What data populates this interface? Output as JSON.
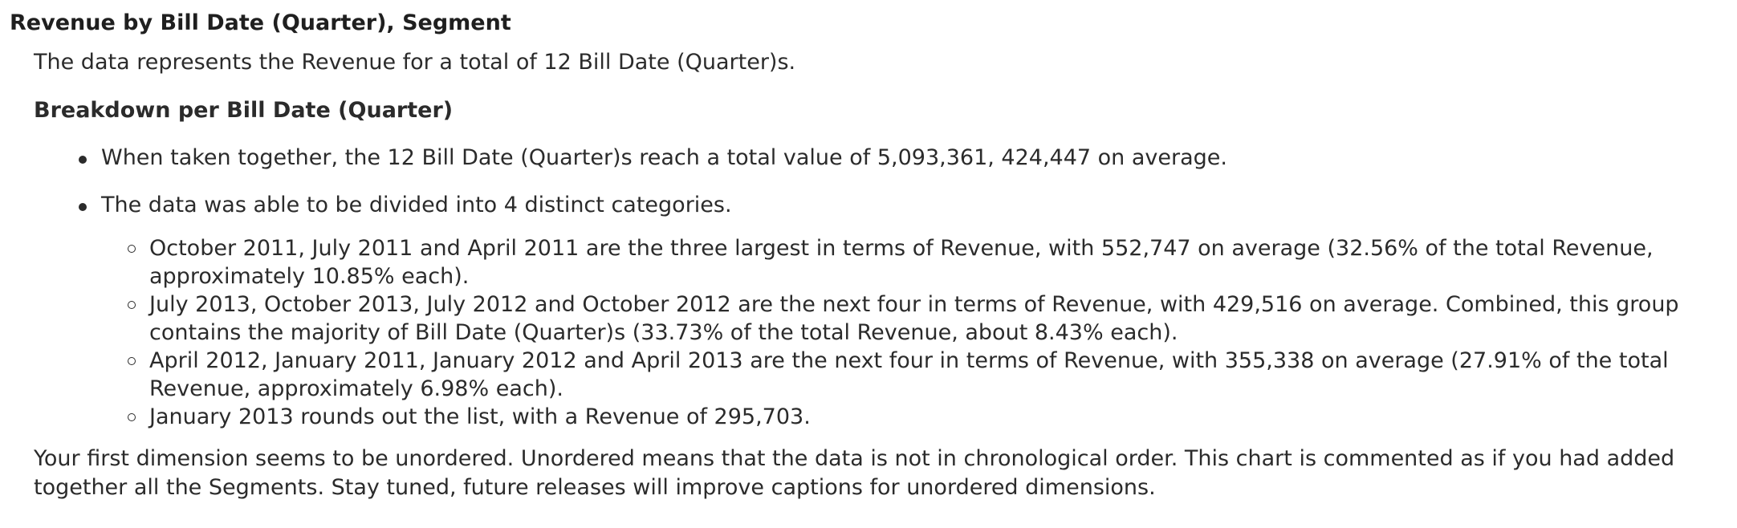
{
  "title": "Revenue by Bill Date (Quarter), Segment",
  "intro": "The data represents the Revenue for a total of 12 Bill Date (Quarter)s.",
  "breakdown": {
    "heading": "Breakdown per Bill Date (Quarter)",
    "bullets": [
      "When taken together, the 12 Bill Date (Quarter)s reach a total value of 5,093,361, 424,447 on average.",
      "The data was able to be divided into 4 distinct categories."
    ],
    "categories": [
      "October 2011, July 2011 and April 2011 are the three largest in terms of Revenue, with 552,747 on average (32.56% of the total Revenue, approximately 10.85% each).",
      "July 2013, October 2013, July 2012 and October 2012 are the next four in terms of Revenue, with 429,516 on average. Combined, this group contains the majority of Bill Date (Quarter)s (33.73% of the total Revenue, about 8.43% each).",
      "April 2012, January 2011, January 2012 and April 2013 are the next four in terms of Revenue, with 355,338 on average (27.91% of the total Revenue, approximately 6.98% each).",
      "January 2013 rounds out the list, with a Revenue of 295,703."
    ]
  },
  "note": "Your first dimension seems to be unordered. Unordered means that the data is not in chronological order. This chart is commented as if you had added together all the Segments. Stay tuned, future releases will improve captions for unordered dimensions."
}
